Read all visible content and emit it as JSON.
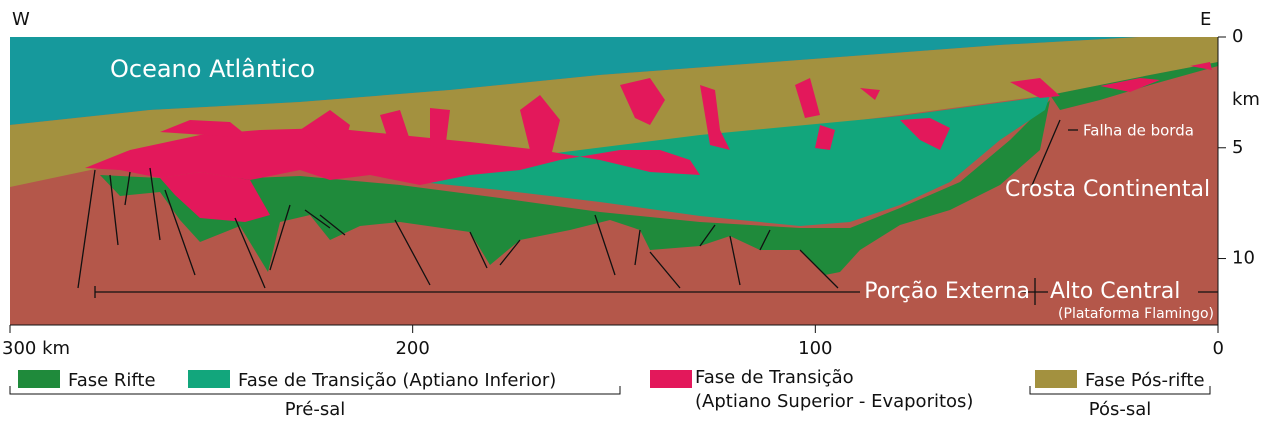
{
  "labels": {
    "west": "W",
    "east": "E",
    "ocean": "Oceano Atlântico",
    "crust": "Crosta Continental",
    "fault": "Falha de borda",
    "outer": "Porção Externa",
    "central": "Alto Central",
    "flamingo": "(Plataforma Flamingo)"
  },
  "depth_axis": {
    "unit": "km",
    "lim": [
      0,
      13
    ],
    "ticks": [
      0,
      5,
      10
    ]
  },
  "distance_axis": {
    "lim": [
      300,
      0
    ],
    "ticks": [
      {
        "value": 300,
        "label": "300 km"
      },
      200,
      100,
      0
    ]
  },
  "legend": {
    "items": [
      {
        "label": "Fase Rifte",
        "color": "#1f8a3b"
      },
      {
        "label": "Fase de Transição (Aptiano Inferior)",
        "color": "#12a67c"
      },
      {
        "lines": [
          "Fase de Transição",
          "(Aptiano Superior - Evaporitos)"
        ],
        "color": "#e3185b"
      },
      {
        "label": "Fase Pós-rifte",
        "color": "#a3913f"
      }
    ],
    "groups": [
      "Pré-sal",
      "Pós-sal"
    ]
  },
  "colors": {
    "ocean": "#16999c",
    "crust": "#b4574a"
  }
}
